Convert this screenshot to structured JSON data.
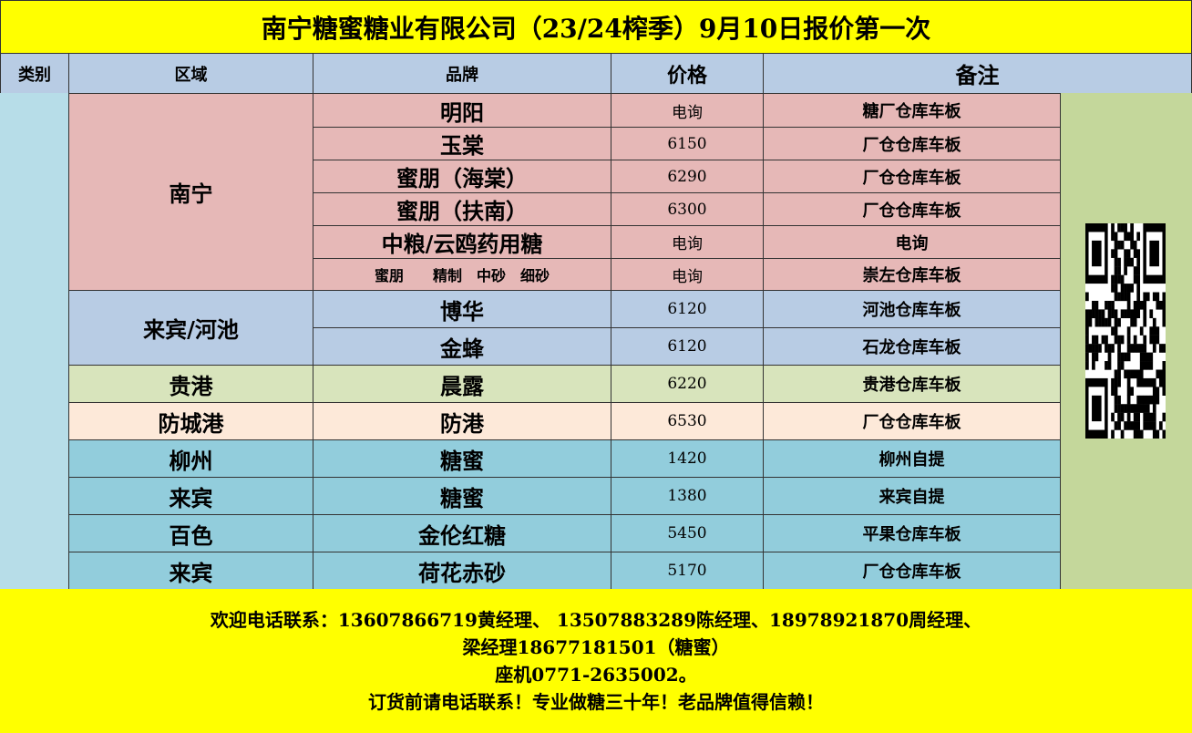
{
  "title": "南宁糖蜜糖业有限公司（23/24榨季）9月10日报价第一次",
  "headers": {
    "category": "类别",
    "region": "区域",
    "brand": "品牌",
    "price": "价格",
    "note": "备注"
  },
  "colors": {
    "title": "#ffff00",
    "header": "#b8cce4",
    "category_col": "#b7dde8",
    "qr_area": "#c4d79b"
  },
  "regions": [
    {
      "name": "南宁",
      "rows": 6,
      "color": "#e6b8b7"
    },
    {
      "name": "来宾/河池",
      "rows": 2,
      "color": "#b8cce4"
    },
    {
      "name": "贵港",
      "rows": 1,
      "color": "#d8e4bc"
    },
    {
      "name": "防城港",
      "rows": 1,
      "color": "#fde9d9"
    },
    {
      "name": "柳州",
      "rows": 1,
      "color": "#92cddc"
    },
    {
      "name": "来宾",
      "rows": 1,
      "color": "#92cddc"
    },
    {
      "name": "百色",
      "rows": 1,
      "color": "#92cddc"
    },
    {
      "name": "来宾",
      "rows": 1,
      "color": "#92cddc"
    }
  ],
  "rows": [
    {
      "brand": "明阳",
      "price": "电询",
      "note": "糖厂仓库车板"
    },
    {
      "brand": "玉棠",
      "price": "6150",
      "note": "厂仓仓库车板"
    },
    {
      "brand": "蜜朋（海棠）",
      "price": "6290",
      "note": "厂仓仓库车板"
    },
    {
      "brand": "蜜朋（扶南）",
      "price": "6300",
      "note": "厂仓仓库车板"
    },
    {
      "brand": "中粮/云鸥药用糖",
      "price": "电询",
      "note": "电询"
    },
    {
      "brand": "蜜朋　　精制　中砂　细砂",
      "price": "电询",
      "note": "崇左仓库车板"
    },
    {
      "brand": "博华",
      "price": "6120",
      "note": "河池仓库车板"
    },
    {
      "brand": "金蜂",
      "price": "6120",
      "note": "石龙仓库车板"
    },
    {
      "brand": "晨露",
      "price": "6220",
      "note": "贵港仓库车板"
    },
    {
      "brand": "防港",
      "price": "6530",
      "note": "厂仓仓库车板"
    },
    {
      "brand": "糖蜜",
      "price": "1420",
      "note": "柳州自提"
    },
    {
      "brand": "糖蜜",
      "price": "1380",
      "note": "来宾自提"
    },
    {
      "brand": "金伦红糖",
      "price": "5450",
      "note": "平果仓库车板"
    },
    {
      "brand": "荷花赤砂",
      "price": "5170",
      "note": "厂仓仓库车板"
    }
  ],
  "qr_icon": "qr-code-icon",
  "footer": {
    "line1": "欢迎电话联系：13607866719黄经理、 13507883289陈经理、18978921870周经理、",
    "line2": "梁经理18677181501（糖蜜）",
    "line3": "座机0771-2635002。",
    "line4": "订货前请电话联系！专业做糖三十年！老品牌值得信赖！"
  }
}
